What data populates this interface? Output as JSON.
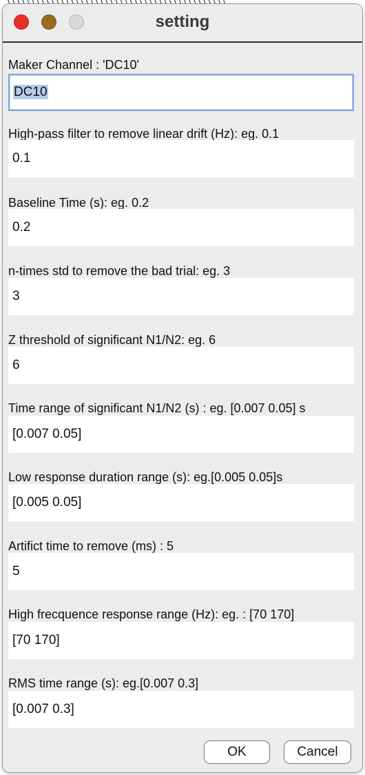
{
  "window": {
    "title": "setting"
  },
  "fields": [
    {
      "label": "Maker Channel : 'DC10'",
      "value": "DC10"
    },
    {
      "label": "High-pass filter to remove linear drift (Hz): eg. 0.1",
      "value": "0.1"
    },
    {
      "label": "Baseline Time (s):  eg. 0.2",
      "value": "0.2"
    },
    {
      "label": "n-times std to remove the bad trial: eg. 3",
      "value": "3"
    },
    {
      "label": "Z threshold of significant N1/N2: eg. 6",
      "value": "6"
    },
    {
      "label": "Time range of significant N1/N2 (s) : eg. [0.007 0.05] s",
      "value": "[0.007 0.05]"
    },
    {
      "label": "Low response duration range (s): eg.[0.005 0.05]s",
      "value": "[0.005 0.05]"
    },
    {
      "label": "Artifict time to remove (ms) : 5",
      "value": "5"
    },
    {
      "label": "High frecquence response range (Hz): eg. : [70 170]",
      "value": "[70 170]"
    },
    {
      "label": "RMS time range (s): eg.[0.007 0.3]",
      "value": "[0.007 0.3]"
    }
  ],
  "buttons": {
    "ok": "OK",
    "cancel": "Cancel"
  }
}
